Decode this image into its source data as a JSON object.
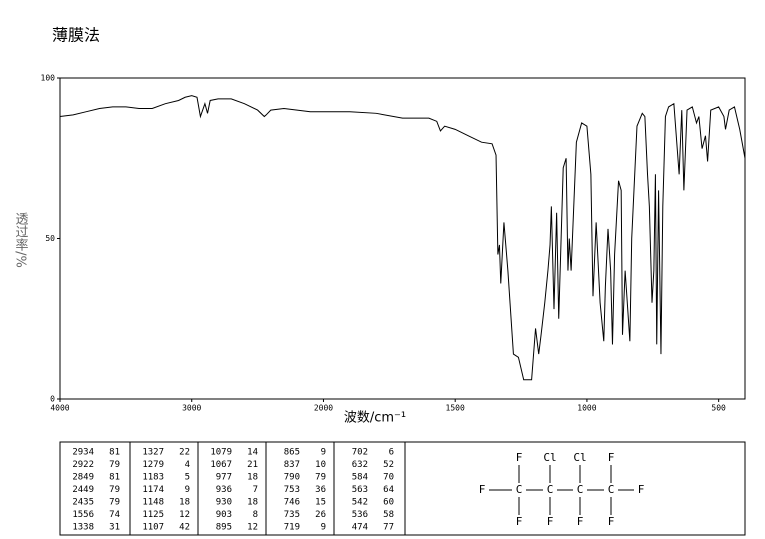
{
  "chart_data": {
    "type": "line",
    "title": "薄膜法",
    "xlabel": "波数/cm⁻¹",
    "ylabel": "透过率/%",
    "x": [
      4000,
      3900,
      3800,
      3700,
      3600,
      3500,
      3400,
      3300,
      3200,
      3100,
      3050,
      3000,
      2960,
      2934,
      2900,
      2880,
      2860,
      2800,
      2700,
      2600,
      2500,
      2449,
      2435,
      2400,
      2300,
      2200,
      2100,
      2000,
      1900,
      1800,
      1700,
      1600,
      1570,
      1556,
      1540,
      1500,
      1450,
      1400,
      1360,
      1345,
      1338,
      1332,
      1327,
      1315,
      1300,
      1279,
      1260,
      1240,
      1210,
      1195,
      1183,
      1174,
      1160,
      1148,
      1140,
      1135,
      1125,
      1115,
      1107,
      1090,
      1079,
      1072,
      1067,
      1060,
      1040,
      1020,
      1000,
      985,
      977,
      965,
      950,
      936,
      930,
      920,
      910,
      903,
      895,
      880,
      870,
      865,
      855,
      837,
      830,
      810,
      790,
      780,
      770,
      763,
      753,
      746,
      740,
      735,
      728,
      719,
      712,
      702,
      690,
      670,
      650,
      640,
      632,
      620,
      600,
      584,
      575,
      563,
      550,
      542,
      530,
      500,
      480,
      474,
      460,
      440,
      420,
      400
    ],
    "values": [
      88,
      88.5,
      89.5,
      90.5,
      91,
      91,
      90.5,
      90.5,
      92,
      93,
      94,
      94.5,
      94,
      88,
      92,
      89,
      93,
      93.5,
      93.5,
      92,
      90,
      88,
      88.5,
      90,
      90.5,
      90,
      89.5,
      89.5,
      89.5,
      89,
      87.5,
      87.5,
      86.5,
      83.5,
      85,
      84,
      82,
      80,
      79.5,
      76,
      45,
      48,
      36,
      55,
      40,
      14,
      13,
      6,
      6,
      22,
      14,
      20,
      30,
      40,
      48,
      60,
      28,
      58,
      25,
      72,
      75,
      40,
      50,
      40,
      80,
      86,
      85,
      70,
      32,
      55,
      30,
      18,
      35,
      53,
      40,
      17,
      45,
      68,
      65,
      20,
      40,
      18,
      50,
      85,
      89,
      88,
      70,
      60,
      30,
      40,
      70,
      17,
      65,
      14,
      60,
      88,
      91,
      92,
      70,
      90,
      65,
      90,
      91,
      86,
      88,
      78,
      82,
      74,
      90,
      91,
      88,
      84,
      90,
      91,
      84,
      75
    ],
    "color": "#000000",
    "xlim": [
      4000,
      400
    ],
    "ylim": [
      0,
      100
    ],
    "xticks": [
      4000,
      3000,
      2000,
      1500,
      1000,
      500
    ],
    "yticks": [
      0,
      50,
      100
    ],
    "xscale": "piecewise-linear",
    "xscale_break": 2000,
    "xscale_break_stretch": 2,
    "grid": false
  },
  "peak_table": {
    "columns": [
      [
        [
          2934,
          81
        ],
        [
          2922,
          79
        ],
        [
          2849,
          81
        ],
        [
          2449,
          79
        ],
        [
          2435,
          79
        ],
        [
          1556,
          74
        ],
        [
          1338,
          31
        ]
      ],
      [
        [
          1327,
          22
        ],
        [
          1279,
          4
        ],
        [
          1183,
          5
        ],
        [
          1174,
          9
        ],
        [
          1148,
          18
        ],
        [
          1125,
          12
        ],
        [
          1107,
          42
        ]
      ],
      [
        [
          1079,
          14
        ],
        [
          1067,
          21
        ],
        [
          977,
          18
        ],
        [
          936,
          7
        ],
        [
          930,
          18
        ],
        [
          903,
          8
        ],
        [
          895,
          12
        ]
      ],
      [
        [
          865,
          9
        ],
        [
          837,
          10
        ],
        [
          790,
          79
        ],
        [
          753,
          36
        ],
        [
          746,
          15
        ],
        [
          735,
          26
        ],
        [
          719,
          9
        ]
      ],
      [
        [
          702,
          6
        ],
        [
          632,
          52
        ],
        [
          584,
          70
        ],
        [
          563,
          64
        ],
        [
          542,
          60
        ],
        [
          536,
          58
        ],
        [
          474,
          77
        ]
      ]
    ]
  },
  "structure": {
    "left": "F",
    "right": "F",
    "chain": [
      "C",
      "C",
      "C",
      "C"
    ],
    "top": [
      "F",
      "Cl",
      "Cl",
      "F"
    ],
    "bottom": [
      "F",
      "F",
      "F",
      "F"
    ]
  }
}
